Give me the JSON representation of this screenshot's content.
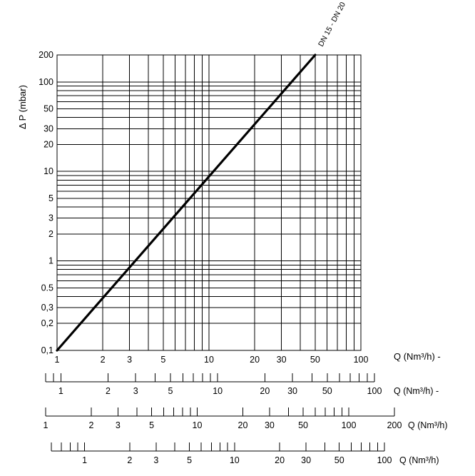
{
  "chart_data": {
    "type": "line",
    "title": "",
    "xscale": "log",
    "yscale": "log",
    "xlim": [
      1,
      100
    ],
    "ylim": [
      0.1,
      200
    ],
    "grid": true,
    "x_tick_labels": [
      "1",
      "2",
      "3",
      "5",
      "10",
      "20",
      "30",
      "50",
      "100"
    ],
    "x_tick_values": [
      1,
      2,
      3,
      5,
      10,
      20,
      30,
      50,
      100
    ],
    "y_tick_labels": [
      "200",
      "100",
      "50",
      "30",
      "20",
      "10",
      "5",
      "3",
      "2",
      "1",
      "0.5",
      "0,3",
      "0,2",
      "0,1"
    ],
    "y_tick_values": [
      200,
      100,
      50,
      30,
      20,
      10,
      5,
      3,
      2,
      1,
      0.5,
      0.3,
      0.2,
      0.1
    ],
    "ylabel": "Δ P (mbar)",
    "xlabel": "Q (Nm³/h) -",
    "series": [
      {
        "name": "DN 15 - DN 20",
        "x": [
          1,
          50
        ],
        "y": [
          0.1,
          200
        ]
      }
    ],
    "secondary_scales": [
      {
        "unit_label": "Q (Nm³/h) -",
        "x_offset": 0.82,
        "labels": [
          "1",
          "2",
          "3",
          "5",
          "10",
          "20",
          "30",
          "50",
          "100"
        ],
        "values": [
          1,
          2,
          3,
          5,
          10,
          20,
          30,
          50,
          100
        ],
        "range": [
          0.8,
          100
        ]
      },
      {
        "unit_label": "Q (Nm³/h)",
        "x_offset": 1,
        "labels": [
          "1",
          "2",
          "3",
          "5",
          "10",
          "20",
          "30",
          "50",
          "100",
          "200"
        ],
        "values": [
          1,
          2,
          3,
          5,
          10,
          20,
          30,
          50,
          100,
          200
        ],
        "range": [
          1,
          200
        ]
      },
      {
        "unit_label": "Q (Nm³/h)",
        "x_offset": 0.74,
        "labels": [
          "1",
          "2",
          "3",
          "5",
          "10",
          "20",
          "30",
          "50",
          "100"
        ],
        "values": [
          1,
          2,
          3,
          5,
          10,
          20,
          30,
          50,
          100
        ],
        "range": [
          0.6,
          100
        ]
      }
    ]
  }
}
